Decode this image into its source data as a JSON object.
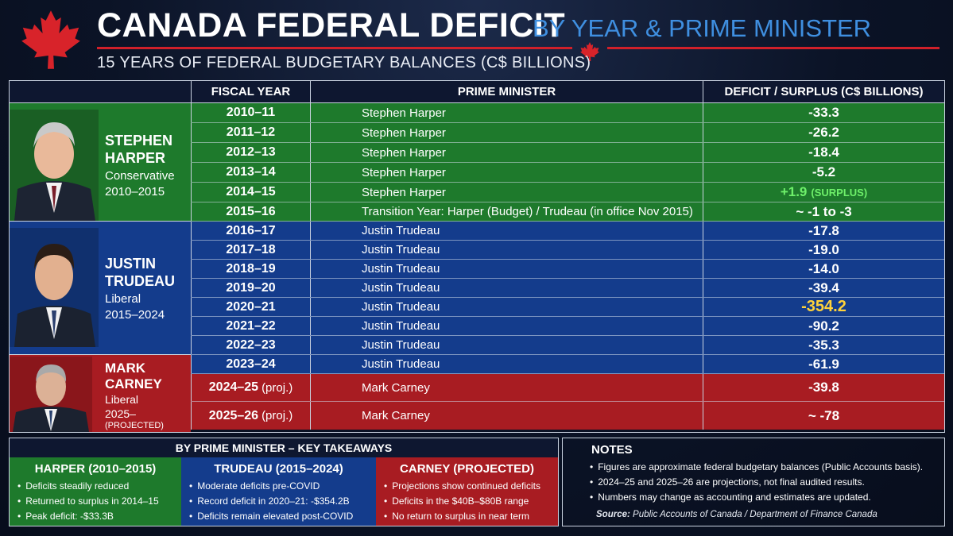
{
  "header": {
    "title": "CANADA FEDERAL DEFICIT",
    "title_suffix": "BY YEAR & PRIME MINISTER",
    "subtitle": "15 YEARS OF FEDERAL BUDGETARY BALANCES (C$ BILLIONS)"
  },
  "table": {
    "headers": [
      "FISCAL YEAR",
      "PRIME MINISTER",
      "DEFICIT / SURPLUS (C$ BILLIONS)"
    ]
  },
  "prime_ministers": [
    {
      "name_line1": "STEPHEN",
      "name_line2": "HARPER",
      "party": "Conservative",
      "years": "2010–2015",
      "color": "#1e7a2c"
    },
    {
      "name_line1": "JUSTIN",
      "name_line2": "TRUDEAU",
      "party": "Liberal",
      "years": "2015–2024",
      "color": "#143c8c"
    },
    {
      "name_line1": "MARK",
      "name_line2": "CARNEY",
      "party": "Liberal",
      "years": "2025–",
      "note": "(PROJECTED)",
      "color": "#a81c22"
    }
  ],
  "rows": [
    {
      "year": "2010–11",
      "pm": "Stephen Harper",
      "value": "-33.3"
    },
    {
      "year": "2011–12",
      "pm": "Stephen Harper",
      "value": "-26.2"
    },
    {
      "year": "2012–13",
      "pm": "Stephen Harper",
      "value": "-18.4"
    },
    {
      "year": "2013–14",
      "pm": "Stephen Harper",
      "value": "-5.2"
    },
    {
      "year": "2014–15",
      "pm": "Stephen Harper",
      "value": "+1.9",
      "tag": "(SURPLUS)"
    },
    {
      "year": "2015–16",
      "pm": "Transition Year: Harper (Budget) / Trudeau (in office Nov 2015)",
      "value": "~ -1 to -3"
    },
    {
      "year": "2016–17",
      "pm": "Justin Trudeau",
      "value": "-17.8"
    },
    {
      "year": "2017–18",
      "pm": "Justin Trudeau",
      "value": "-19.0"
    },
    {
      "year": "2018–19",
      "pm": "Justin Trudeau",
      "value": "-14.0"
    },
    {
      "year": "2019–20",
      "pm": "Justin Trudeau",
      "value": "-39.4"
    },
    {
      "year": "2020–21",
      "pm": "Justin Trudeau",
      "value": "-354.2"
    },
    {
      "year": "2021–22",
      "pm": "Justin Trudeau",
      "value": "-90.2"
    },
    {
      "year": "2022–23",
      "pm": "Justin Trudeau",
      "value": "-35.3"
    },
    {
      "year": "2023–24",
      "pm": "Justin Trudeau",
      "value": "-61.9"
    },
    {
      "year": "2024–25",
      "year_note": "(proj.)",
      "pm": "Mark Carney",
      "value": "-39.8"
    },
    {
      "year": "2025–26",
      "year_note": "(proj.)",
      "pm": "Mark Carney",
      "value": "~ -78"
    }
  ],
  "chart_data": {
    "type": "table",
    "title": "CANADA FEDERAL DEFICIT BY YEAR & PRIME MINISTER",
    "categories": [
      "2010–11",
      "2011–12",
      "2012–13",
      "2013–14",
      "2014–15",
      "2015–16",
      "2016–17",
      "2017–18",
      "2018–19",
      "2019–20",
      "2020–21",
      "2021–22",
      "2022–23",
      "2023–24",
      "2024–25",
      "2025–26"
    ],
    "values": [
      -33.3,
      -26.2,
      -18.4,
      -5.2,
      1.9,
      -2,
      -17.8,
      -19.0,
      -14.0,
      -39.4,
      -354.2,
      -90.2,
      -35.3,
      -61.9,
      -39.8,
      -78
    ],
    "ylabel": "Deficit / Surplus (C$ billions)"
  },
  "takeaways": {
    "heading": "BY PRIME MINISTER – KEY TAKEAWAYS",
    "columns": [
      {
        "title": "HARPER (2010–2015)",
        "color": "#1e7a2c",
        "items": [
          "Deficits steadily reduced",
          "Returned to surplus in 2014–15",
          "Peak deficit: -$33.3B"
        ]
      },
      {
        "title": "TRUDEAU (2015–2024)",
        "color": "#143c8c",
        "items": [
          "Moderate deficits pre-COVID",
          "Record deficit in 2020–21: -$354.2B",
          "Deficits remain elevated post-COVID"
        ]
      },
      {
        "title": "CARNEY (PROJECTED)",
        "color": "#a81c22",
        "items": [
          "Projections show continued deficits",
          "Deficits in the $40B–$80B range",
          "No return to surplus in near term"
        ]
      }
    ]
  },
  "notes": {
    "title": "NOTES",
    "items": [
      "Figures are approximate federal budgetary balances (Public Accounts basis).",
      "2024–25 and 2025–26 are projections, not final audited results.",
      "Numbers may change as accounting and estimates are updated."
    ],
    "source_label": "Source:",
    "source_text": "Public Accounts of Canada / Department of Finance Canada"
  },
  "colors": {
    "harper": "#1e7a2c",
    "trudeau": "#143c8c",
    "carney": "#a81c22",
    "accent_blue": "#3f8fe0",
    "red": "#d0202a"
  }
}
